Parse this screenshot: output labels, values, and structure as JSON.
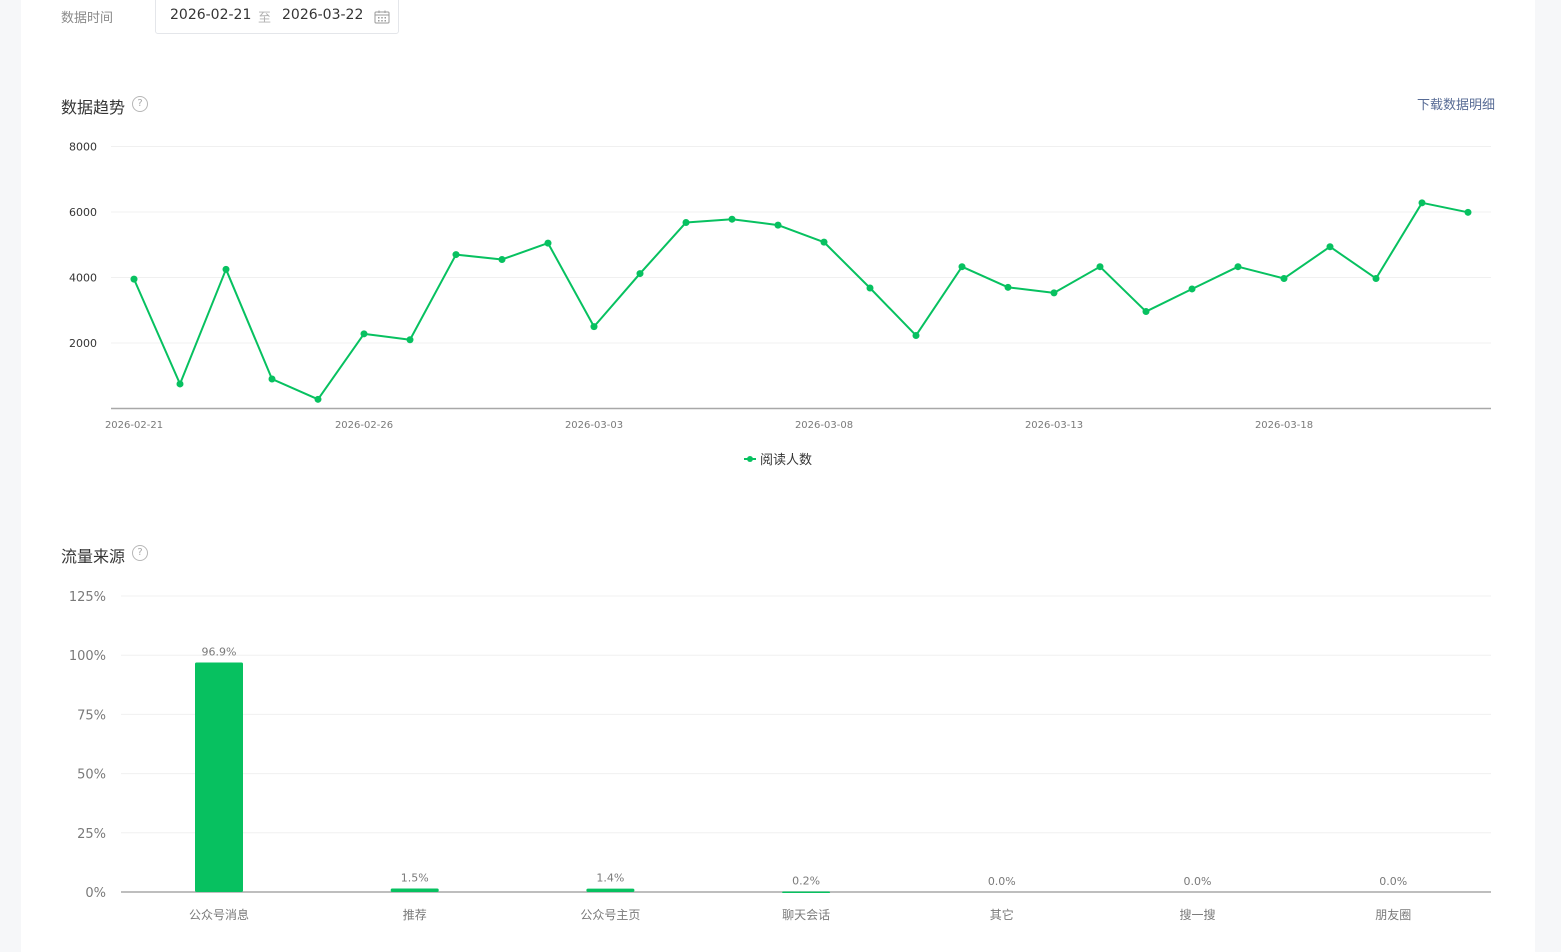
{
  "filter": {
    "label": "数据时间",
    "start_date": "2026-02-21",
    "separator": "至",
    "end_date": "2026-03-22"
  },
  "trend": {
    "title": "数据趋势",
    "help": "?",
    "download_label": "下载数据明细",
    "legend": "阅读人数"
  },
  "traffic": {
    "title": "流量来源",
    "help": "?"
  },
  "colors": {
    "accent": "#07c160",
    "link": "#576b95",
    "grid": "#f0f0f0",
    "axis": "#a8a8a8"
  },
  "chart_data": [
    {
      "type": "line",
      "title": "数据趋势",
      "series": [
        {
          "name": "阅读人数",
          "values": [
            3950,
            750,
            4250,
            900,
            280,
            2280,
            2100,
            4700,
            4550,
            5050,
            2500,
            4120,
            5680,
            5780,
            5600,
            5080,
            3680,
            2230,
            4330,
            3700,
            3530,
            4330,
            2960,
            3650,
            4330,
            3970,
            4940,
            3970,
            6280,
            5990
          ]
        }
      ],
      "x": [
        "2026-02-21",
        "2026-02-22",
        "2026-02-23",
        "2026-02-24",
        "2026-02-25",
        "2026-02-26",
        "2026-02-27",
        "2026-02-28",
        "2026-03-01",
        "2026-03-02",
        "2026-03-03",
        "2026-03-04",
        "2026-03-05",
        "2026-03-06",
        "2026-03-07",
        "2026-03-08",
        "2026-03-09",
        "2026-03-10",
        "2026-03-11",
        "2026-03-12",
        "2026-03-13",
        "2026-03-14",
        "2026-03-15",
        "2026-03-16",
        "2026-03-17",
        "2026-03-18",
        "2026-03-19",
        "2026-03-20",
        "2026-03-21",
        "2026-03-22"
      ],
      "x_tick_labels": [
        "2026-02-21",
        "2026-02-26",
        "2026-03-03",
        "2026-03-08",
        "2026-03-13",
        "2026-03-18"
      ],
      "y_ticks": [
        "2000",
        "4000",
        "6000",
        "8000"
      ],
      "ylim": [
        0,
        8000
      ],
      "grid": true,
      "legend_position": "bottom-center"
    },
    {
      "type": "bar",
      "title": "流量来源",
      "categories": [
        "公众号消息",
        "推荐",
        "公众号主页",
        "聊天会话",
        "其它",
        "搜一搜",
        "朋友圈"
      ],
      "values": [
        96.9,
        1.5,
        1.4,
        0.2,
        0.0,
        0.0,
        0.0
      ],
      "value_labels": [
        "96.9%",
        "1.5%",
        "1.4%",
        "0.2%",
        "0.0%",
        "0.0%",
        "0.0%"
      ],
      "y_ticks": [
        "0%",
        "25%",
        "50%",
        "75%",
        "100%",
        "125%"
      ],
      "ylim": [
        0,
        125
      ],
      "grid": true
    }
  ]
}
